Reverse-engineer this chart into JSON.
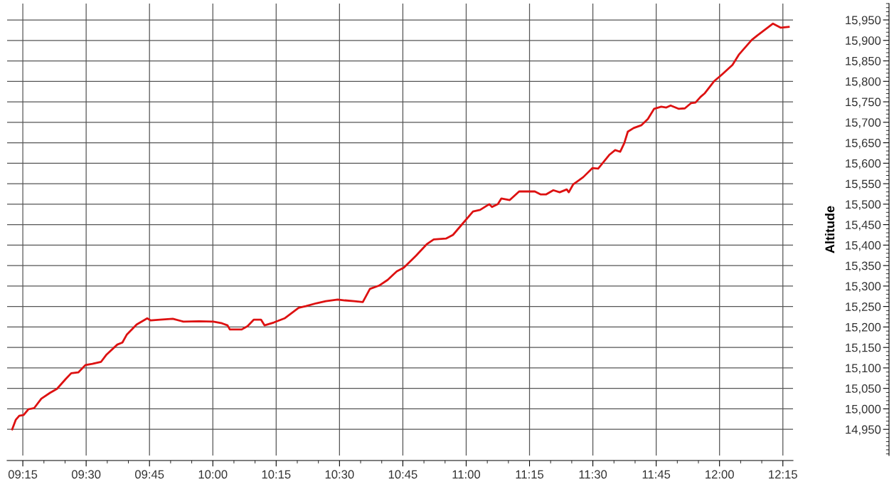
{
  "chart_data": {
    "type": "line",
    "ylabel": "Altitude",
    "x": [
      9.208,
      9.222,
      9.236,
      9.253,
      9.272,
      9.295,
      9.323,
      9.357,
      9.385,
      9.418,
      9.441,
      9.469,
      9.497,
      9.525,
      9.559,
      9.581,
      9.623,
      9.643,
      9.66,
      9.699,
      9.741,
      9.755,
      9.792,
      9.842,
      9.884,
      9.946,
      10.002,
      10.036,
      10.058,
      10.067,
      10.114,
      10.137,
      10.162,
      10.19,
      10.204,
      10.241,
      10.283,
      10.311,
      10.339,
      10.367,
      10.409,
      10.446,
      10.493,
      10.521,
      10.558,
      10.592,
      10.62,
      10.656,
      10.69,
      10.726,
      10.754,
      10.802,
      10.844,
      10.872,
      10.92,
      10.948,
      10.984,
      11.027,
      11.055,
      11.091,
      11.102,
      11.125,
      11.139,
      11.172,
      11.209,
      11.271,
      11.293,
      11.316,
      11.344,
      11.369,
      11.397,
      11.405,
      11.422,
      11.462,
      11.498,
      11.521,
      11.566,
      11.588,
      11.608,
      11.624,
      11.638,
      11.661,
      11.692,
      11.717,
      11.742,
      11.77,
      11.79,
      11.807,
      11.838,
      11.863,
      11.888,
      11.905,
      11.925,
      11.942,
      11.978,
      12.003,
      12.051,
      12.076,
      12.127,
      12.149,
      12.211,
      12.242,
      12.273
    ],
    "series": [
      {
        "color": "#dd1111",
        "values": [
          14950,
          14973,
          14983,
          14985,
          14999,
          15002,
          15025,
          15039,
          15049,
          15072,
          15087,
          15089,
          15107,
          15110,
          15115,
          15133,
          15157,
          15162,
          15181,
          15206,
          15221,
          15216,
          15218,
          15220,
          15213,
          15214,
          15213,
          15209,
          15204,
          15194,
          15194,
          15202,
          15218,
          15218,
          15204,
          15211,
          15221,
          15234,
          15247,
          15251,
          15258,
          15263,
          15267,
          15265,
          15263,
          15261,
          15293,
          15301,
          15315,
          15336,
          15345,
          15374,
          15402,
          15414,
          15416,
          15425,
          15451,
          15482,
          15486,
          15500,
          15493,
          15500,
          15514,
          15510,
          15531,
          15531,
          15524,
          15524,
          15534,
          15529,
          15536,
          15529,
          15548,
          15566,
          15588,
          15587,
          15621,
          15632,
          15628,
          15649,
          15677,
          15686,
          15693,
          15708,
          15733,
          15738,
          15736,
          15741,
          15733,
          15734,
          15747,
          15748,
          15762,
          15771,
          15800,
          15813,
          15840,
          15865,
          15901,
          15912,
          15941,
          15931,
          15933
        ]
      }
    ],
    "xlim": [
      9.188,
      12.29
    ],
    "xticks": [
      {
        "value": 9.25,
        "label": "09:15"
      },
      {
        "value": 9.5,
        "label": "09:30"
      },
      {
        "value": 9.75,
        "label": "09:45"
      },
      {
        "value": 10.0,
        "label": "10:00"
      },
      {
        "value": 10.25,
        "label": "10:15"
      },
      {
        "value": 10.5,
        "label": "10:30"
      },
      {
        "value": 10.75,
        "label": "10:45"
      },
      {
        "value": 11.0,
        "label": "11:00"
      },
      {
        "value": 11.25,
        "label": "11:15"
      },
      {
        "value": 11.5,
        "label": "11:30"
      },
      {
        "value": 11.75,
        "label": "11:45"
      },
      {
        "value": 12.0,
        "label": "12:00"
      },
      {
        "value": 12.25,
        "label": "12:15"
      }
    ],
    "ylim": [
      14886,
      15990
    ],
    "yticks": [
      {
        "value": 14950,
        "label": "14,950"
      },
      {
        "value": 15000,
        "label": "15,000"
      },
      {
        "value": 15050,
        "label": "15,050"
      },
      {
        "value": 15100,
        "label": "15,100"
      },
      {
        "value": 15150,
        "label": "15,150"
      },
      {
        "value": 15200,
        "label": "15,200"
      },
      {
        "value": 15250,
        "label": "15,250"
      },
      {
        "value": 15300,
        "label": "15,300"
      },
      {
        "value": 15350,
        "label": "15,350"
      },
      {
        "value": 15400,
        "label": "15,400"
      },
      {
        "value": 15450,
        "label": "15,450"
      },
      {
        "value": 15500,
        "label": "15,500"
      },
      {
        "value": 15550,
        "label": "15,550"
      },
      {
        "value": 15600,
        "label": "15,600"
      },
      {
        "value": 15650,
        "label": "15,650"
      },
      {
        "value": 15700,
        "label": "15,700"
      },
      {
        "value": 15750,
        "label": "15,750"
      },
      {
        "value": 15800,
        "label": "15,800"
      },
      {
        "value": 15850,
        "label": "15,850"
      },
      {
        "value": 15900,
        "label": "15,900"
      },
      {
        "value": 15950,
        "label": "15,950"
      }
    ],
    "grid": true
  }
}
